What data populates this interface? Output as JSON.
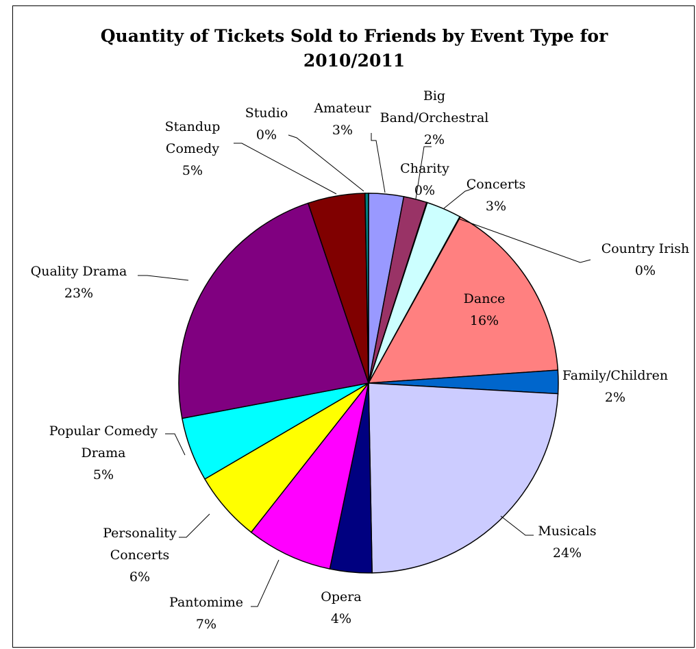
{
  "chart_data": {
    "type": "pie",
    "title_lines": [
      "Quantity of Tickets Sold to Friends by Event Type for",
      "2010/2011"
    ],
    "slices": [
      {
        "name": "Amateur",
        "label_lines": [
          "Amateur"
        ],
        "pct_label": "3%",
        "value": 3.0,
        "color": "#9999FF"
      },
      {
        "name": "Big Band/Orchestral",
        "label_lines": [
          "Big",
          "Band/Orchestral"
        ],
        "pct_label": "2%",
        "value": 2.0,
        "color": "#993366"
      },
      {
        "name": "Charity",
        "label_lines": [
          "Charity"
        ],
        "pct_label": "0%",
        "value": 0.05,
        "color": "#FFFFCC"
      },
      {
        "name": "Concerts",
        "label_lines": [
          "Concerts"
        ],
        "pct_label": "3%",
        "value": 3.0,
        "color": "#CCFFFF"
      },
      {
        "name": "Country Irish",
        "label_lines": [
          "Country Irish"
        ],
        "pct_label": "0%",
        "value": 0.05,
        "color": "#660066"
      },
      {
        "name": "Dance",
        "label_lines": [
          "Dance"
        ],
        "pct_label": "16%",
        "value": 16.0,
        "color": "#FF8080",
        "label_inside": true
      },
      {
        "name": "Family/Children",
        "label_lines": [
          "Family/Children"
        ],
        "pct_label": "2%",
        "value": 2.0,
        "color": "#0066CC"
      },
      {
        "name": "Musicals",
        "label_lines": [
          "Musicals"
        ],
        "pct_label": "24%",
        "value": 24.0,
        "color": "#CCCCFF"
      },
      {
        "name": "Opera",
        "label_lines": [
          "Opera"
        ],
        "pct_label": "4%",
        "value": 3.6,
        "color": "#000080"
      },
      {
        "name": "Pantomime",
        "label_lines": [
          "Pantomime"
        ],
        "pct_label": "7%",
        "value": 7.4,
        "color": "#FF00FF"
      },
      {
        "name": "Personality Concerts",
        "label_lines": [
          "Personality",
          "Concerts"
        ],
        "pct_label": "6%",
        "value": 6.0,
        "color": "#FFFF00"
      },
      {
        "name": "Popular Comedy Drama",
        "label_lines": [
          "Popular Comedy",
          "Drama"
        ],
        "pct_label": "5%",
        "value": 5.5,
        "color": "#00FFFF"
      },
      {
        "name": "Quality Drama",
        "label_lines": [
          "Quality Drama"
        ],
        "pct_label": "23%",
        "value": 23.0,
        "color": "#800080"
      },
      {
        "name": "Standup Comedy",
        "label_lines": [
          "Standup",
          "Comedy"
        ],
        "pct_label": "5%",
        "value": 4.9,
        "color": "#800000"
      },
      {
        "name": "Studio",
        "label_lines": [
          "Studio"
        ],
        "pct_label": "0%",
        "value": 0.3,
        "color": "#008080"
      }
    ],
    "start_angle_deg": 0,
    "direction": "clockwise",
    "legend": "none",
    "data_labels": "category name and percentage"
  }
}
